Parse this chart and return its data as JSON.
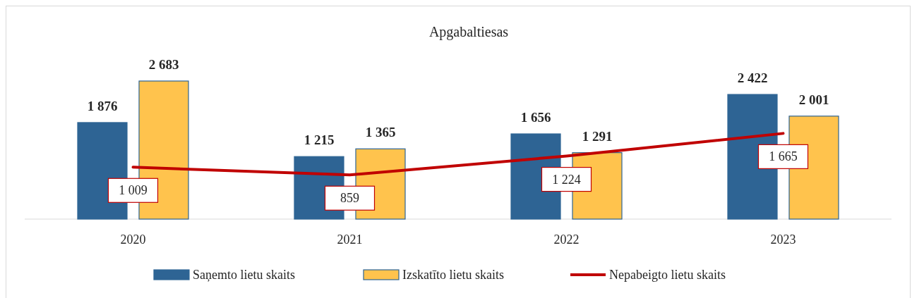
{
  "chart_data": {
    "type": "bar",
    "title": "Apgabaltiesas",
    "categories": [
      "2020",
      "2021",
      "2022",
      "2023"
    ],
    "series": [
      {
        "name": "Saņemto lietu skaits",
        "color": "#2e6494",
        "values": [
          1876,
          1215,
          1656,
          2422
        ]
      },
      {
        "name": "Izskatīto lietu skaits",
        "color": "#ffc34d",
        "values": [
          2683,
          1365,
          1291,
          2001
        ]
      },
      {
        "name": "Nepabeigto lietu skaits",
        "type": "line",
        "color": "#c00000",
        "values": [
          1009,
          859,
          1224,
          1665
        ]
      }
    ],
    "data_labels": true,
    "legend": "bottom"
  }
}
